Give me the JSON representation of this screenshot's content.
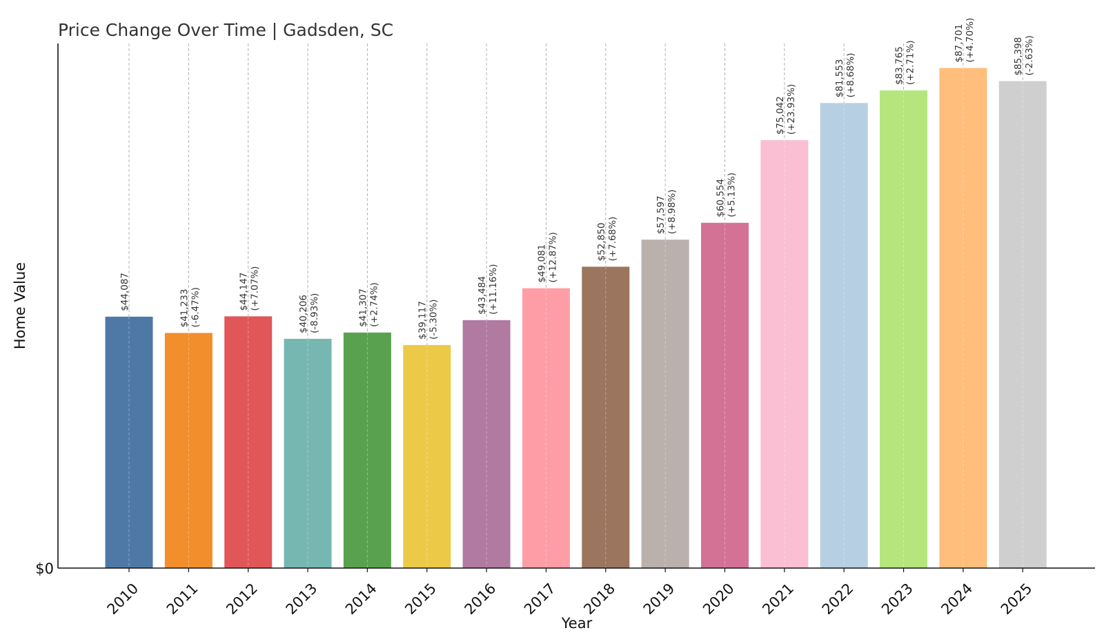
{
  "chart_data": {
    "type": "bar",
    "title": "Price Change Over Time | Gadsden, SC",
    "xlabel": "Year",
    "ylabel": "Home Value",
    "y_tick_labels": [
      "$0"
    ],
    "ylim": [
      0,
      92000
    ],
    "grid": "vertical dashed lines at each category",
    "legend": "none",
    "categories": [
      "2010",
      "2011",
      "2012",
      "2013",
      "2014",
      "2015",
      "2016",
      "2017",
      "2018",
      "2019",
      "2020",
      "2021",
      "2022",
      "2023",
      "2024",
      "2025"
    ],
    "values": [
      44087,
      41233,
      44147,
      40206,
      41307,
      39117,
      43484,
      49081,
      52850,
      57597,
      60554,
      75042,
      81553,
      83765,
      87701,
      85398
    ],
    "value_labels": [
      "$44,087",
      "$41,233",
      "$44,147",
      "$40,206",
      "$41,307",
      "$39,117",
      "$43,484",
      "$49,081",
      "$52,850",
      "$57,597",
      "$60,554",
      "$75,042",
      "$81,553",
      "$83,765",
      "$87,701",
      "$85,398"
    ],
    "change_labels": [
      "",
      "(-6.47%)",
      "(+7.07%)",
      "(-8.93%)",
      "(+2.74%)",
      "(-5.30%)",
      "(+11.16%)",
      "(+12.87%)",
      "(+7.68%)",
      "(+8.98%)",
      "(+5.13%)",
      "(+23.93%)",
      "(+8.68%)",
      "(+2.71%)",
      "(+4.70%)",
      "(-2.63%)"
    ],
    "colors": [
      "#4e79a7",
      "#f28e2b",
      "#e15759",
      "#76b7b2",
      "#59a14f",
      "#edc948",
      "#b07aa1",
      "#ff9da7",
      "#9c755f",
      "#bab0ac",
      "#d37295",
      "#fabfd2",
      "#b6cfe2",
      "#b5e57c",
      "#ffbe7c",
      "#cfcfcf"
    ]
  }
}
